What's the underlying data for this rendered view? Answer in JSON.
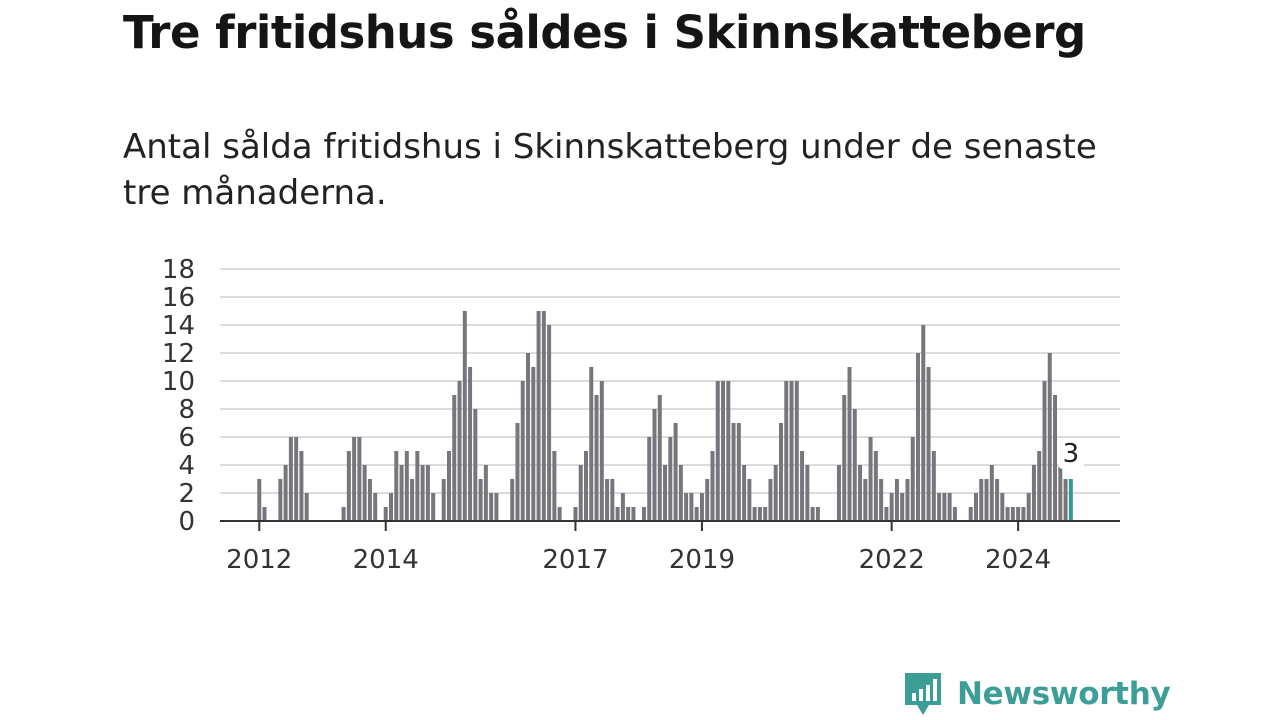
{
  "title": "Tre fritidshus såldes i Skinnskatteberg",
  "subtitle": "Antal sålda fritidshus i Skinnskatteberg under de senaste tre månaderna.",
  "brand": {
    "name": "Newsworthy",
    "icon": "newsworthy-logo-icon",
    "color": "#3d9e98"
  },
  "chart_data": {
    "type": "bar",
    "title": "",
    "xlabel": "",
    "ylabel": "",
    "ylim": [
      0,
      18
    ],
    "y_ticks": [
      "0",
      "2",
      "4",
      "6",
      "8",
      "10",
      "12",
      "14",
      "16",
      "18"
    ],
    "x_ticks": [
      {
        "label": "2012",
        "index": 8
      },
      {
        "label": "2014",
        "index": 32
      },
      {
        "label": "2017",
        "index": 68
      },
      {
        "label": "2019",
        "index": 92
      },
      {
        "label": "2022",
        "index": 128
      },
      {
        "label": "2024",
        "index": 152
      }
    ],
    "grid": true,
    "bar_color": "#77767c",
    "highlight_color": "#2f9b97",
    "highlight_label": "3",
    "values": [
      0,
      0,
      0,
      0,
      0,
      0,
      0,
      0,
      3,
      1,
      0,
      0,
      3,
      4,
      6,
      6,
      5,
      2,
      0,
      0,
      0,
      0,
      0,
      0,
      1,
      5,
      6,
      6,
      4,
      3,
      2,
      0,
      1,
      2,
      5,
      4,
      5,
      3,
      5,
      4,
      4,
      2,
      0,
      3,
      5,
      9,
      10,
      15,
      11,
      8,
      3,
      4,
      2,
      2,
      0,
      0,
      3,
      7,
      10,
      12,
      11,
      15,
      15,
      14,
      5,
      1,
      0,
      0,
      1,
      4,
      5,
      11,
      9,
      10,
      3,
      3,
      1,
      2,
      1,
      1,
      0,
      1,
      6,
      8,
      9,
      4,
      6,
      7,
      4,
      2,
      2,
      1,
      2,
      3,
      5,
      10,
      10,
      10,
      7,
      7,
      4,
      3,
      1,
      1,
      1,
      3,
      4,
      7,
      10,
      10,
      10,
      5,
      4,
      1,
      1,
      0,
      0,
      0,
      4,
      9,
      11,
      8,
      4,
      3,
      6,
      5,
      3,
      1,
      2,
      3,
      2,
      3,
      6,
      12,
      14,
      11,
      5,
      2,
      2,
      2,
      1,
      0,
      0,
      1,
      2,
      3,
      3,
      4,
      3,
      2,
      1,
      1,
      1,
      1,
      2,
      4,
      5,
      10,
      12,
      9,
      4,
      3,
      3
    ]
  }
}
